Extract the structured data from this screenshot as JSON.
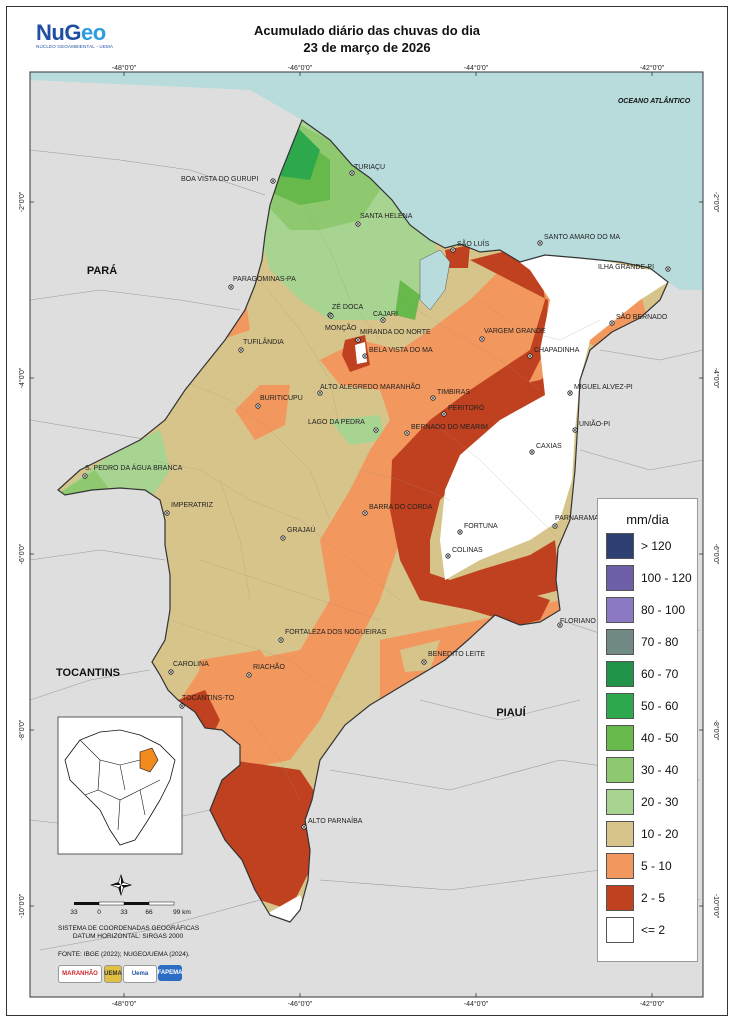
{
  "header": {
    "logo_main_a": "NuG",
    "logo_main_b": "eo",
    "logo_sub": "NÚCLEO GEOAMBIENTAL - UEMA",
    "title_line1": "Acumulado diário das chuvas do dia",
    "title_line2": "23 de março de 2026"
  },
  "graticule": {
    "lon_top": [
      "-48°0'0\"",
      "-46°0'0\"",
      "-44°0'0\"",
      "-42°0'0\""
    ],
    "lon_bottom": [
      "-48°0'0\"",
      "-46°0'0\"",
      "-44°0'0\"",
      "-42°0'0\""
    ],
    "lat_left": [
      "-2°0'0\"",
      "-4°0'0\"",
      "-6°0'0\"",
      "-8°0'0\"",
      "-10°0'0\""
    ],
    "lat_right": [
      "-2°0'0\"",
      "-4°0'0\"",
      "-6°0'0\"",
      "-8°0'0\"",
      "-10°0'0\""
    ]
  },
  "regions": {
    "ocean": "OCEANO ATLÂNTICO",
    "para": "PARÁ",
    "tocantins": "TOCANTINS",
    "piaui": "PIAUÍ"
  },
  "cities": [
    {
      "name": "TURIAÇU"
    },
    {
      "name": "BOA VISTA DO GURUPI"
    },
    {
      "name": "SANTA HELENA"
    },
    {
      "name": "SÃO LUÍS"
    },
    {
      "name": "SANTO AMARO DO MA"
    },
    {
      "name": "ILHA GRANDE-PI"
    },
    {
      "name": "PARAGOMINAS-PA"
    },
    {
      "name": "ZÉ DOCA"
    },
    {
      "name": "CAJARI"
    },
    {
      "name": "SÃO BERNADO"
    },
    {
      "name": "MONÇÃO"
    },
    {
      "name": "MIRANDA DO NORTE"
    },
    {
      "name": "VARGEM GRANDE"
    },
    {
      "name": "TUFILÂNDIA"
    },
    {
      "name": "BELA VISTA DO MA"
    },
    {
      "name": "CHAPADINHA"
    },
    {
      "name": "ALTO ALEGREDO MARANHÃO"
    },
    {
      "name": "MIGUEL ALVEZ-PI"
    },
    {
      "name": "BURITICUPU"
    },
    {
      "name": "TIMBIRAS"
    },
    {
      "name": "PERITORÓ"
    },
    {
      "name": "LAGO DA PEDRA"
    },
    {
      "name": "BERNADO DO MEARIM"
    },
    {
      "name": "UNIÃO-PI"
    },
    {
      "name": "CAXIAS"
    },
    {
      "name": "S. PEDRO DA ÁGUA BRANCA"
    },
    {
      "name": "IMPERATRIZ"
    },
    {
      "name": "BARRA DO CORDA"
    },
    {
      "name": "PARNARAMA"
    },
    {
      "name": "FORTUNA"
    },
    {
      "name": "GRAJAÚ"
    },
    {
      "name": "COLINAS"
    },
    {
      "name": "FORTALEZA DOS NOGUEIRAS"
    },
    {
      "name": "FLORIANO"
    },
    {
      "name": "BENEDITO LEITE"
    },
    {
      "name": "CAROLINA"
    },
    {
      "name": "RIACHÃO"
    },
    {
      "name": "TOCANTINS-TO"
    },
    {
      "name": "ALTO PARNAÍBA"
    }
  ],
  "legend": {
    "title": "mm/dia",
    "items": [
      {
        "label": "> 120",
        "color": "#2e3f73"
      },
      {
        "label": "100 - 120",
        "color": "#6f5ea8"
      },
      {
        "label": "80 - 100",
        "color": "#8b79c4"
      },
      {
        "label": "70 - 80",
        "color": "#728a85"
      },
      {
        "label": "60 - 70",
        "color": "#1f9448"
      },
      {
        "label": "50 - 60",
        "color": "#2ea84d"
      },
      {
        "label": "40 - 50",
        "color": "#67b94c"
      },
      {
        "label": "30 - 40",
        "color": "#8ec96f"
      },
      {
        "label": "20 - 30",
        "color": "#a8d492"
      },
      {
        "label": "10 - 20",
        "color": "#d7c48a"
      },
      {
        "label": "5 - 10",
        "color": "#f2975d"
      },
      {
        "label": "2 - 5",
        "color": "#c0411f"
      },
      {
        "label": "<= 2",
        "color": "#ffffff"
      }
    ]
  },
  "scale_bar": {
    "ticks": [
      "33",
      "0",
      "33",
      "66",
      "99 km"
    ]
  },
  "footer": {
    "coord_system_1": "SISTEMA DE COORDENADAS GEOGRÁFICAS",
    "coord_system_2": "DATUM HORIZONTAL: SIRGAS 2000",
    "source": "FONTE: IBGE (2022); NUGEO/UEMA (2024).",
    "sponsors": [
      "MARANHÃO",
      "UEMA",
      "Uema",
      "FAPEMA"
    ]
  },
  "colors": {
    "ocean": "#b8dcdc",
    "land_outside": "#dedede",
    "border": "#555555"
  }
}
